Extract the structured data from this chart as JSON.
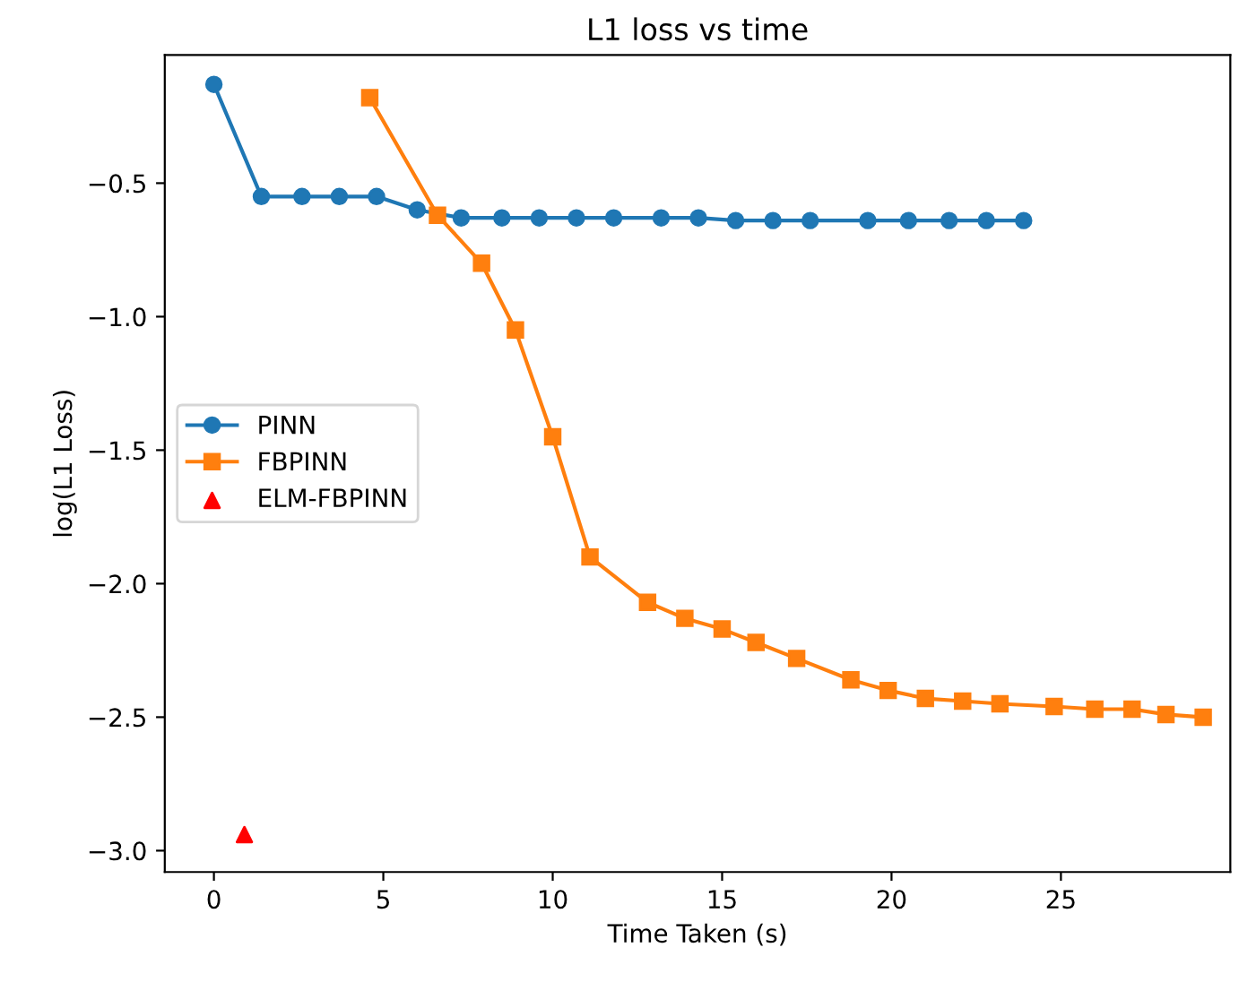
{
  "chart_data": {
    "type": "line",
    "title": "L1 loss vs time",
    "xlabel": "Time Taken (s)",
    "ylabel": "log(L1 Loss)",
    "xlim": [
      -1.45,
      30.0
    ],
    "ylim": [
      -3.08,
      -0.02
    ],
    "xticks": [
      0,
      5,
      10,
      15,
      20,
      25
    ],
    "yticks": [
      {
        "value": -3.0,
        "label": "−3.0"
      },
      {
        "value": -2.5,
        "label": "−2.5"
      },
      {
        "value": -2.0,
        "label": "−2.0"
      },
      {
        "value": -1.5,
        "label": "−1.5"
      },
      {
        "value": -1.0,
        "label": "−1.0"
      },
      {
        "value": -0.5,
        "label": "−0.5"
      }
    ],
    "grid": false,
    "legend": "left",
    "series": [
      {
        "name": "PINN",
        "color": "#1f77b4",
        "marker": "circle",
        "x": [
          0.0,
          1.4,
          2.6,
          3.7,
          4.8,
          6.0,
          7.3,
          8.5,
          9.6,
          10.7,
          11.8,
          13.2,
          14.3,
          15.4,
          16.5,
          17.6,
          19.3,
          20.5,
          21.7,
          22.8,
          23.9
        ],
        "values": [
          -0.13,
          -0.55,
          -0.55,
          -0.55,
          -0.55,
          -0.6,
          -0.63,
          -0.63,
          -0.63,
          -0.63,
          -0.63,
          -0.63,
          -0.63,
          -0.64,
          -0.64,
          -0.64,
          -0.64,
          -0.64,
          -0.64,
          -0.64,
          -0.64
        ]
      },
      {
        "name": "FBPINN",
        "color": "#ff7f0e",
        "marker": "square",
        "x": [
          4.6,
          6.6,
          7.9,
          8.9,
          10.0,
          11.1,
          12.8,
          13.9,
          15.0,
          16.0,
          17.2,
          18.8,
          19.9,
          21.0,
          22.1,
          23.2,
          24.8,
          26.0,
          27.1,
          28.1,
          29.2
        ],
        "values": [
          -0.18,
          -0.62,
          -0.8,
          -1.05,
          -1.45,
          -1.9,
          -2.07,
          -2.13,
          -2.17,
          -2.22,
          -2.28,
          -2.36,
          -2.4,
          -2.43,
          -2.44,
          -2.45,
          -2.46,
          -2.47,
          -2.47,
          -2.49,
          -2.5
        ]
      },
      {
        "name": "ELM-FBPINN",
        "color": "#ff0000",
        "type": "scatter",
        "marker": "triangle",
        "x": [
          0.9
        ],
        "values": [
          -2.94
        ]
      }
    ]
  }
}
